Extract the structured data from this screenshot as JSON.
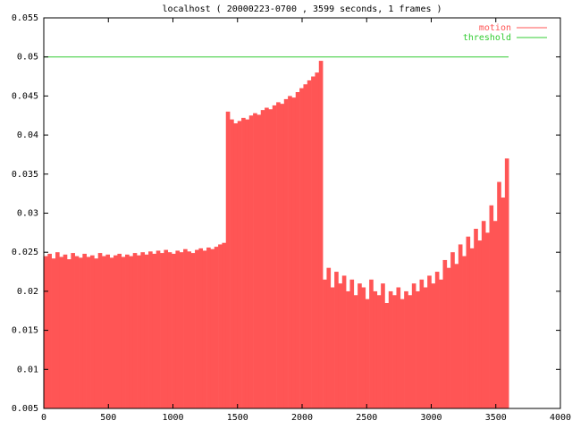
{
  "chart_data": {
    "type": "impulse",
    "title": "localhost ( 20000223-0700 , 3599 seconds, 1 frames )",
    "xlim": [
      0,
      4000
    ],
    "xticks": [
      0,
      500,
      1000,
      1500,
      2000,
      2500,
      3000,
      3500,
      4000
    ],
    "ylim": [
      0.005,
      0.055
    ],
    "yticks": [
      0.005,
      0.01,
      0.015,
      0.02,
      0.025,
      0.03,
      0.035,
      0.04,
      0.045,
      0.05,
      0.055
    ],
    "legend": "top-right",
    "series": [
      {
        "name": "motion",
        "color": "#ff5555",
        "x": [
          0,
          30,
          60,
          90,
          120,
          150,
          180,
          210,
          240,
          270,
          300,
          330,
          360,
          390,
          420,
          450,
          480,
          510,
          540,
          570,
          600,
          630,
          660,
          690,
          720,
          750,
          780,
          810,
          840,
          870,
          900,
          930,
          960,
          990,
          1020,
          1050,
          1080,
          1110,
          1140,
          1170,
          1200,
          1230,
          1260,
          1290,
          1320,
          1350,
          1380,
          1410,
          1440,
          1470,
          1500,
          1530,
          1560,
          1590,
          1620,
          1650,
          1680,
          1710,
          1740,
          1770,
          1800,
          1830,
          1860,
          1890,
          1920,
          1950,
          1980,
          2010,
          2040,
          2070,
          2100,
          2130,
          2160,
          2190,
          2220,
          2250,
          2280,
          2310,
          2340,
          2370,
          2400,
          2430,
          2460,
          2490,
          2520,
          2550,
          2580,
          2610,
          2640,
          2670,
          2700,
          2730,
          2760,
          2790,
          2820,
          2850,
          2880,
          2910,
          2940,
          2970,
          3000,
          3030,
          3060,
          3090,
          3120,
          3150,
          3180,
          3210,
          3240,
          3270,
          3300,
          3330,
          3360,
          3390,
          3420,
          3450,
          3480,
          3510,
          3540,
          3570
        ],
        "values": [
          0.0245,
          0.0248,
          0.0242,
          0.025,
          0.0244,
          0.0247,
          0.0241,
          0.0249,
          0.0245,
          0.0243,
          0.0248,
          0.0244,
          0.0246,
          0.0242,
          0.0249,
          0.0245,
          0.0247,
          0.0243,
          0.0246,
          0.0248,
          0.0244,
          0.0247,
          0.0245,
          0.0249,
          0.0246,
          0.025,
          0.0247,
          0.0251,
          0.0248,
          0.0252,
          0.0249,
          0.0253,
          0.025,
          0.0248,
          0.0252,
          0.025,
          0.0254,
          0.0251,
          0.0249,
          0.0253,
          0.0255,
          0.0252,
          0.0256,
          0.0254,
          0.0257,
          0.026,
          0.0262,
          0.043,
          0.042,
          0.0415,
          0.0418,
          0.0422,
          0.042,
          0.0425,
          0.0428,
          0.0426,
          0.0432,
          0.0435,
          0.0433,
          0.0438,
          0.0442,
          0.044,
          0.0446,
          0.045,
          0.0448,
          0.0455,
          0.046,
          0.0465,
          0.047,
          0.0475,
          0.048,
          0.0495,
          0.0215,
          0.023,
          0.0205,
          0.0225,
          0.021,
          0.022,
          0.02,
          0.0215,
          0.0195,
          0.021,
          0.0205,
          0.019,
          0.0215,
          0.02,
          0.0195,
          0.021,
          0.0185,
          0.02,
          0.0195,
          0.0205,
          0.019,
          0.02,
          0.0195,
          0.021,
          0.02,
          0.0215,
          0.0205,
          0.022,
          0.021,
          0.0225,
          0.0215,
          0.024,
          0.023,
          0.025,
          0.0235,
          0.026,
          0.0245,
          0.027,
          0.0255,
          0.028,
          0.0265,
          0.029,
          0.0275,
          0.031,
          0.029,
          0.034,
          0.032,
          0.037
        ]
      },
      {
        "name": "threshold",
        "color": "#33cc33",
        "x": [
          0,
          3599
        ],
        "values": [
          0.05,
          0.05
        ]
      }
    ]
  }
}
